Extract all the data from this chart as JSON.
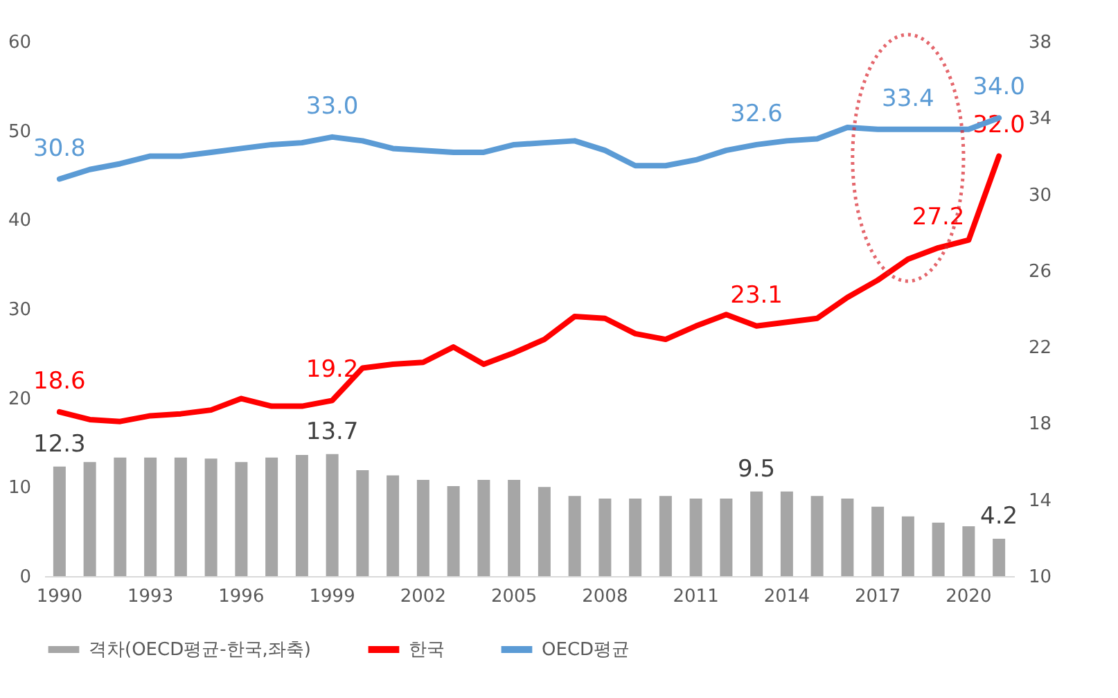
{
  "chart_data": {
    "type": "bar",
    "categories": [
      "1990",
      null,
      null,
      "1993",
      null,
      null,
      "1996",
      null,
      null,
      "1999",
      null,
      null,
      "2002",
      null,
      null,
      "2005",
      null,
      null,
      "2008",
      null,
      null,
      "2011",
      null,
      null,
      "2014",
      null,
      null,
      "2017",
      null,
      null,
      "2020",
      null
    ],
    "series": [
      {
        "name": "격차(OECD평균-한국,좌축)",
        "color": "#a6a6a6",
        "values": [
          12.3,
          12.8,
          13.3,
          13.3,
          13.3,
          13.2,
          12.8,
          13.3,
          13.6,
          13.7,
          11.9,
          11.3,
          10.8,
          10.1,
          10.8,
          10.8,
          10.0,
          9.0,
          8.7,
          8.7,
          9.0,
          8.7,
          8.7,
          9.5,
          9.5,
          9.0,
          8.7,
          7.8,
          6.7,
          6.0,
          5.6,
          4.2
        ],
        "value_labels": [
          "12.3",
          null,
          null,
          null,
          null,
          null,
          null,
          null,
          null,
          "13.7",
          null,
          null,
          null,
          null,
          null,
          null,
          null,
          null,
          null,
          null,
          null,
          null,
          null,
          "9.5",
          null,
          null,
          null,
          null,
          null,
          null,
          null,
          "4.2"
        ]
      },
      {
        "type": "line",
        "name": "한국",
        "color": "#ff0000",
        "axis": "y2",
        "values": [
          18.6,
          18.2,
          18.1,
          18.4,
          18.5,
          18.7,
          19.3,
          18.9,
          18.9,
          19.2,
          20.9,
          21.1,
          21.2,
          22.0,
          21.1,
          21.7,
          22.4,
          23.6,
          23.5,
          22.7,
          22.4,
          23.1,
          23.7,
          23.1,
          23.3,
          23.5,
          24.6,
          25.5,
          26.6,
          27.2,
          27.6,
          32.0
        ],
        "value_labels": [
          "18.6",
          null,
          null,
          null,
          null,
          null,
          null,
          null,
          null,
          "19.2",
          null,
          null,
          null,
          null,
          null,
          null,
          null,
          null,
          null,
          null,
          null,
          null,
          null,
          "23.1",
          null,
          null,
          null,
          null,
          null,
          "27.2",
          null,
          "32.0"
        ]
      },
      {
        "type": "line",
        "name": "OECD평균",
        "color": "#5b9bd5",
        "axis": "y2",
        "values": [
          30.8,
          31.3,
          31.6,
          32.0,
          32.0,
          32.2,
          32.4,
          32.6,
          32.7,
          33.0,
          32.8,
          32.4,
          32.3,
          32.2,
          32.2,
          32.6,
          32.7,
          32.8,
          32.3,
          31.5,
          31.5,
          31.8,
          32.3,
          32.6,
          32.8,
          32.9,
          33.5,
          33.4,
          33.4,
          33.4,
          33.4,
          34.0
        ],
        "value_labels": [
          "30.8",
          null,
          null,
          null,
          null,
          null,
          null,
          null,
          null,
          "33.0",
          null,
          null,
          null,
          null,
          null,
          null,
          null,
          null,
          null,
          null,
          null,
          null,
          null,
          "32.6",
          null,
          null,
          null,
          null,
          "33.4",
          null,
          null,
          "34.0"
        ]
      }
    ],
    "ylim": [
      0,
      60
    ],
    "yticks": [
      0,
      10,
      20,
      30,
      40,
      50,
      60
    ],
    "y2lim": [
      10,
      38
    ],
    "y2ticks": [
      10,
      14,
      18,
      22,
      26,
      30,
      34,
      38
    ],
    "legend": "bottom"
  }
}
